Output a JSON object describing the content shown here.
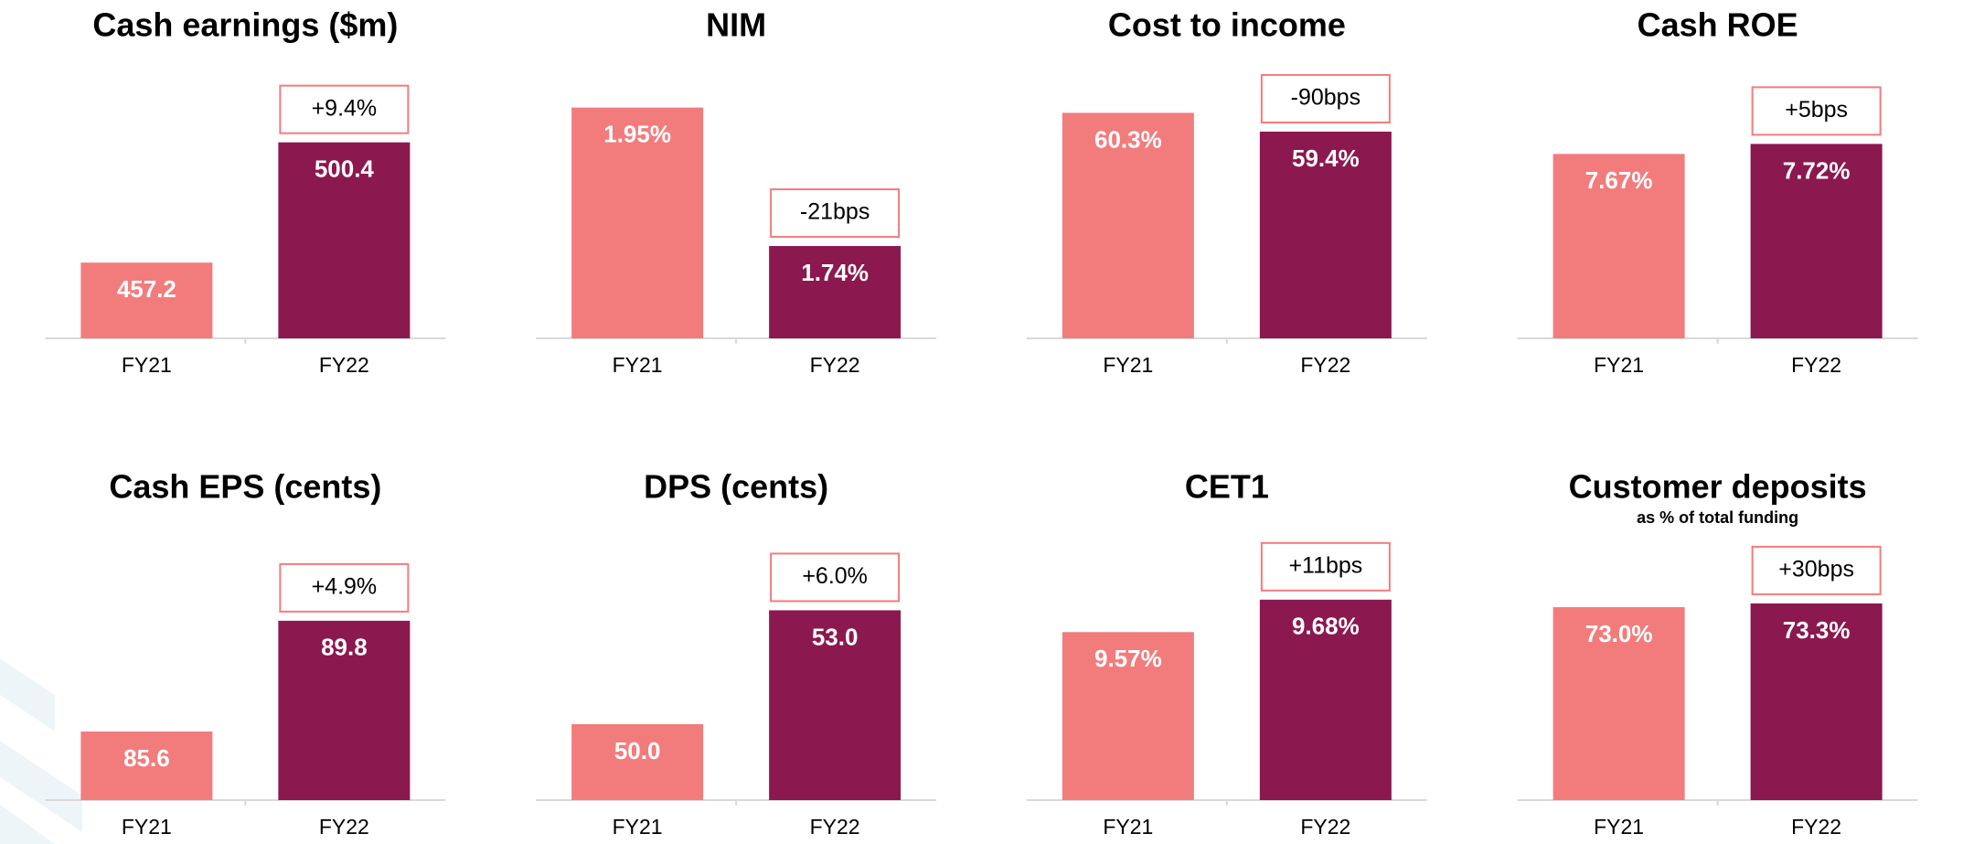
{
  "chart_data": [
    {
      "type": "bar",
      "title": "Cash earnings ($m)",
      "categories": [
        "FY21",
        "FY22"
      ],
      "values": [
        457.2,
        500.4
      ],
      "colors": [
        "#f27c7c",
        "#8b184f"
      ],
      "ylim": [
        430,
        520
      ],
      "annotation": "+9.4%"
    },
    {
      "type": "bar",
      "title": "NIM",
      "categories": [
        "FY21",
        "FY22"
      ],
      "values": [
        1.95,
        1.74
      ],
      "value_labels": [
        "1.95%",
        "1.74%"
      ],
      "colors": [
        "#f27c7c",
        "#8b184f"
      ],
      "ylim": [
        1.6,
        1.98
      ],
      "annotation": "-21bps"
    },
    {
      "type": "bar",
      "title": "Cost to income",
      "categories": [
        "FY21",
        "FY22"
      ],
      "values": [
        60.3,
        59.4
      ],
      "value_labels": [
        "60.3%",
        "59.4%"
      ],
      "colors": [
        "#f27c7c",
        "#8b184f"
      ],
      "ylim": [
        49.5,
        61.5
      ],
      "annotation": "-90bps"
    },
    {
      "type": "bar",
      "title": "Cash ROE",
      "categories": [
        "FY21",
        "FY22"
      ],
      "values": [
        7.67,
        7.72
      ],
      "value_labels": [
        "7.67%",
        "7.72%"
      ],
      "colors": [
        "#f27c7c",
        "#8b184f"
      ],
      "ylim": [
        6.75,
        8.0
      ],
      "annotation": "+5bps"
    },
    {
      "type": "bar",
      "title": "Cash EPS (cents)",
      "categories": [
        "FY21",
        "FY22"
      ],
      "values": [
        85.6,
        89.8
      ],
      "colors": [
        "#f27c7c",
        "#8b184f"
      ],
      "ylim": [
        83,
        92.5
      ],
      "annotation": "+4.9%"
    },
    {
      "type": "bar",
      "title": "DPS (cents)",
      "categories": [
        "FY21",
        "FY22"
      ],
      "values": [
        50.0,
        53.0
      ],
      "value_labels": [
        "50.0",
        "53.0"
      ],
      "colors": [
        "#f27c7c",
        "#8b184f"
      ],
      "ylim": [
        48,
        54.6
      ],
      "annotation": "+6.0%"
    },
    {
      "type": "bar",
      "title": "CET1",
      "categories": [
        "FY21",
        "FY22"
      ],
      "values": [
        9.57,
        9.68
      ],
      "value_labels": [
        "9.57%",
        "9.68%"
      ],
      "colors": [
        "#f27c7c",
        "#8b184f"
      ],
      "ylim": [
        9.0,
        9.85
      ],
      "annotation": "+11bps"
    },
    {
      "type": "bar",
      "title": "Customer deposits",
      "subtitle": "as % of total funding",
      "categories": [
        "FY21",
        "FY22"
      ],
      "values": [
        73.0,
        73.3
      ],
      "value_labels": [
        "73.0%",
        "73.3%"
      ],
      "colors": [
        "#f27c7c",
        "#8b184f"
      ],
      "ylim": [
        57.6,
        77.6
      ],
      "annotation": "+30bps"
    }
  ]
}
